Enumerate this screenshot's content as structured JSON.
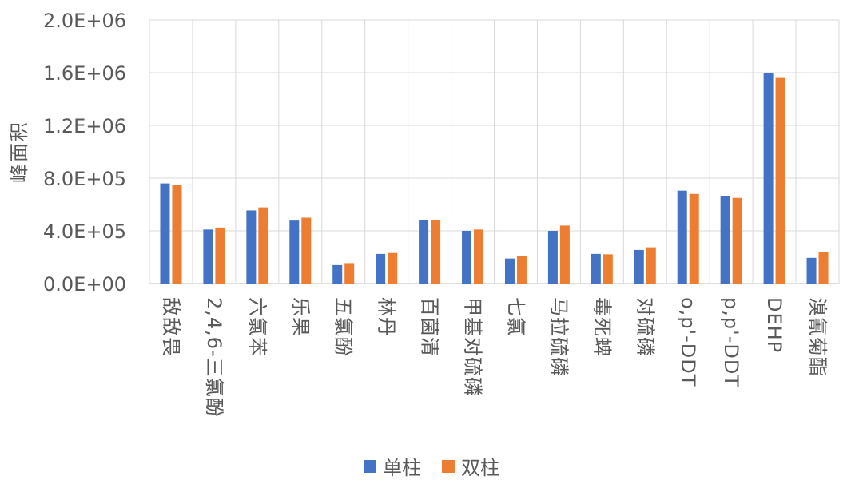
{
  "chart_data": {
    "type": "bar",
    "ylabel": "峰面积",
    "xlabel": "",
    "ylim": [
      0,
      2000000
    ],
    "y_ticks": [
      "0.0E+00",
      "4.0E+05",
      "8.0E+05",
      "1.2E+06",
      "1.6E+06",
      "2.0E+06"
    ],
    "y_tick_values": [
      0,
      400000,
      800000,
      1200000,
      1600000,
      2000000
    ],
    "grid": true,
    "legend_position": "bottom",
    "categories": [
      "敌敌畏",
      "2,4,6-三氯酚",
      "六氯苯",
      "乐果",
      "五氯酚",
      "林丹",
      "百菌清",
      "甲基对硫磷",
      "七氯",
      "马拉硫磷",
      "毒死蜱",
      "对硫磷",
      "o,p'-DDT",
      "p,p'-DDT",
      "DEHP",
      "溴氰菊酯"
    ],
    "series": [
      {
        "name": "单柱",
        "color": "#4472C4",
        "values": [
          760000,
          410000,
          555000,
          478000,
          140000,
          225000,
          480000,
          400000,
          190000,
          400000,
          225000,
          255000,
          705000,
          665000,
          1595000,
          195000
        ]
      },
      {
        "name": "双柱",
        "color": "#ED7D31",
        "values": [
          750000,
          425000,
          578000,
          500000,
          155000,
          232000,
          483000,
          410000,
          210000,
          440000,
          222000,
          275000,
          680000,
          650000,
          1560000,
          237000
        ]
      }
    ]
  }
}
